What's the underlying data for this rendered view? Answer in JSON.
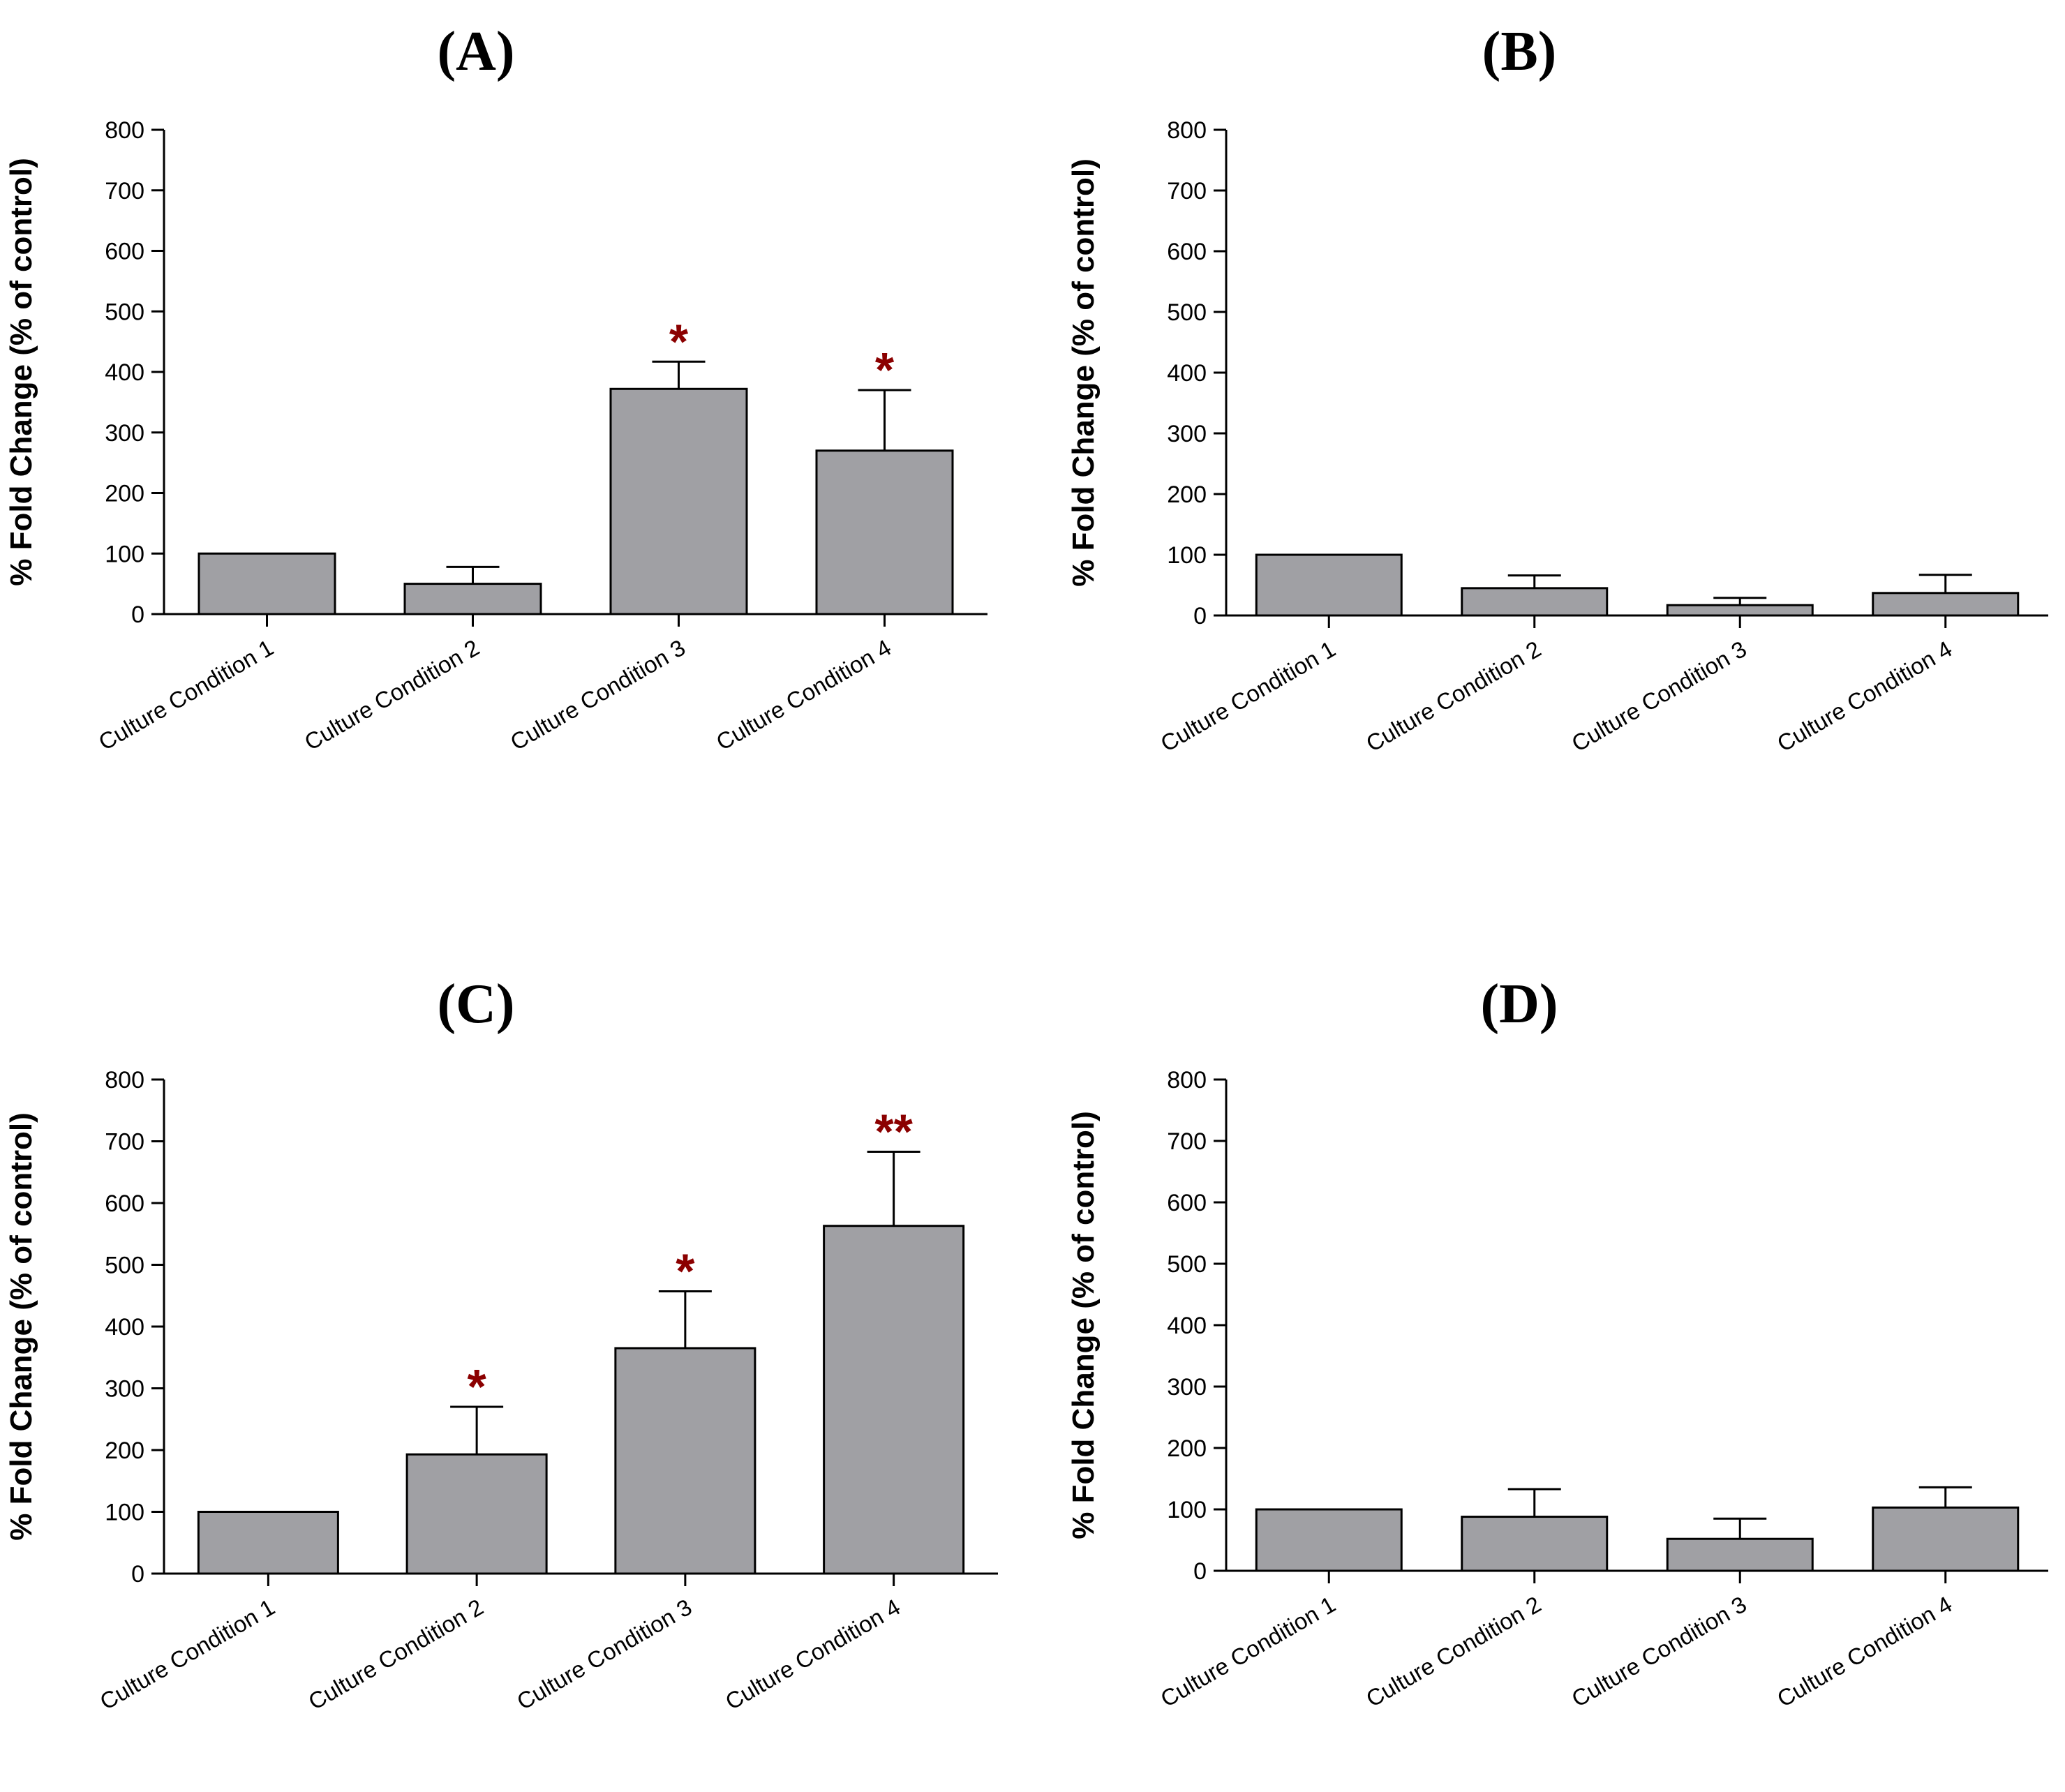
{
  "chart_data": [
    {
      "type": "bar",
      "title": "(A)",
      "xlabel": "",
      "ylabel": "% Fold Change (% of control)",
      "ylim": [
        0,
        800
      ],
      "yticks": [
        0,
        100,
        200,
        300,
        400,
        500,
        600,
        700,
        800
      ],
      "categories": [
        "Culture Condition 1",
        "Culture Condition 2",
        "Culture Condition 3",
        "Culture Condition 4"
      ],
      "values": [
        100,
        50,
        372,
        270
      ],
      "error": [
        0,
        28,
        45,
        100
      ],
      "significance": [
        "",
        "",
        "*",
        "*"
      ],
      "bar_color": "#a0a0a4",
      "sig_color": "#8b0000",
      "grid": false
    },
    {
      "type": "bar",
      "title": "(B)",
      "xlabel": "",
      "ylabel": "% Fold Change (% of control)",
      "ylim": [
        0,
        800
      ],
      "yticks": [
        0,
        100,
        200,
        300,
        400,
        500,
        600,
        700,
        800
      ],
      "categories": [
        "Culture Condition 1",
        "Culture Condition 2",
        "Culture Condition 3",
        "Culture Condition 4"
      ],
      "values": [
        100,
        45,
        17,
        37
      ],
      "error": [
        0,
        21,
        12,
        30
      ],
      "significance": [
        "",
        "",
        "",
        ""
      ],
      "bar_color": "#a0a0a4",
      "sig_color": "#8b0000",
      "grid": false
    },
    {
      "type": "bar",
      "title": "(C)",
      "xlabel": "",
      "ylabel": "% Fold Change (% of control)",
      "ylim": [
        0,
        800
      ],
      "yticks": [
        0,
        100,
        200,
        300,
        400,
        500,
        600,
        700,
        800
      ],
      "categories": [
        "Culture Condition 1",
        "Culture Condition 2",
        "Culture Condition 3",
        "Culture Condition 4"
      ],
      "values": [
        100,
        193,
        365,
        563
      ],
      "error": [
        0,
        77,
        92,
        120
      ],
      "significance": [
        "",
        "*",
        "*",
        "**"
      ],
      "bar_color": "#a0a0a4",
      "sig_color": "#8b0000",
      "grid": false
    },
    {
      "type": "bar",
      "title": "(D)",
      "xlabel": "",
      "ylabel": "% Fold Change (% of control)",
      "ylim": [
        0,
        800
      ],
      "yticks": [
        0,
        100,
        200,
        300,
        400,
        500,
        600,
        700,
        800
      ],
      "categories": [
        "Culture Condition 1",
        "Culture Condition 2",
        "Culture Condition 3",
        "Culture Condition 4"
      ],
      "values": [
        100,
        88,
        52,
        103
      ],
      "error": [
        0,
        45,
        33,
        33
      ],
      "significance": [
        "",
        "",
        "",
        ""
      ],
      "bar_color": "#a0a0a4",
      "sig_color": "#8b0000",
      "grid": false
    }
  ]
}
